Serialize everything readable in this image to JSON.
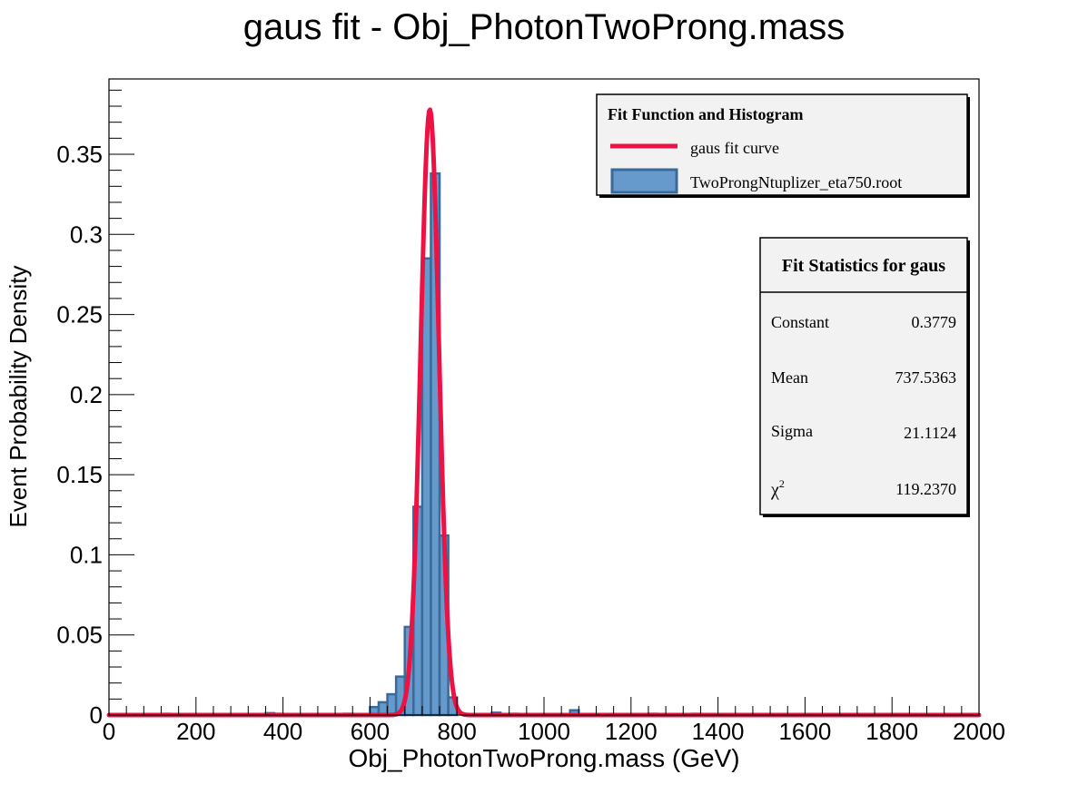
{
  "chart_data": {
    "type": "bar",
    "title": "gaus fit - Obj_PhotonTwoProng.mass",
    "xlabel": "Obj_PhotonTwoProng.mass (GeV)",
    "ylabel": "Event Probability Density",
    "xlim": [
      0,
      2000
    ],
    "ylim": [
      0,
      0.397
    ],
    "xticks": [
      0,
      200,
      400,
      600,
      800,
      1000,
      1200,
      1400,
      1600,
      1800,
      2000
    ],
    "xtick_labels": [
      "0",
      "200",
      "400",
      "600",
      "800",
      "1000",
      "1200",
      "1400",
      "1600",
      "1800",
      "2000"
    ],
    "yticks": [
      0,
      0.05,
      0.1,
      0.15,
      0.2,
      0.25,
      0.3,
      0.35
    ],
    "ytick_labels": [
      "0",
      "0.05",
      "0.1",
      "0.15",
      "0.2",
      "0.25",
      "0.3",
      "0.35"
    ],
    "grid": false,
    "histogram": {
      "name": "TwoProngNtuplizer_eta750.root",
      "bin_width": 20,
      "bins": [
        {
          "x0": 100,
          "v": 0.0006
        },
        {
          "x0": 120,
          "v": 0.0008
        },
        {
          "x0": 200,
          "v": 0.0006
        },
        {
          "x0": 360,
          "v": 0.0012
        },
        {
          "x0": 380,
          "v": 0.0008
        },
        {
          "x0": 540,
          "v": 0.0008
        },
        {
          "x0": 600,
          "v": 0.005
        },
        {
          "x0": 620,
          "v": 0.008
        },
        {
          "x0": 640,
          "v": 0.013
        },
        {
          "x0": 660,
          "v": 0.024
        },
        {
          "x0": 680,
          "v": 0.055
        },
        {
          "x0": 700,
          "v": 0.13
        },
        {
          "x0": 720,
          "v": 0.285
        },
        {
          "x0": 740,
          "v": 0.338
        },
        {
          "x0": 760,
          "v": 0.112
        },
        {
          "x0": 780,
          "v": 0.011
        },
        {
          "x0": 880,
          "v": 0.0015
        },
        {
          "x0": 920,
          "v": 0.0008
        },
        {
          "x0": 1060,
          "v": 0.003
        },
        {
          "x0": 1240,
          "v": 0.0008
        },
        {
          "x0": 1340,
          "v": 0.0008
        }
      ],
      "fill_color": "#6699cc",
      "line_color": "#3a6a98"
    },
    "fit": {
      "name": "gaus fit curve",
      "function": "gaus",
      "constant": 0.3779,
      "mean": 737.5363,
      "sigma": 21.1124,
      "color": "#ee1144"
    },
    "legend": {
      "title": "Fit Function and Histogram",
      "placement": "top-right",
      "entries": [
        "gaus fit curve",
        "TwoProngNtuplizer_eta750.root"
      ]
    },
    "stats_box": {
      "title": "Fit Statistics for gaus",
      "placement": "right",
      "rows": [
        {
          "label": "Constant",
          "value": "0.3779"
        },
        {
          "label": "Mean",
          "value": "737.5363"
        },
        {
          "label": "Sigma",
          "value": "21.1124"
        },
        {
          "label": "χ",
          "sup": "2",
          "value": "119.2370"
        }
      ]
    }
  }
}
